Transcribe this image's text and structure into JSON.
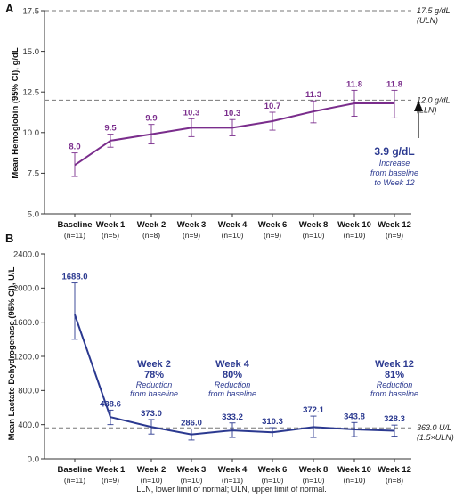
{
  "panel_a": {
    "label": "A",
    "reference_lines": [
      {
        "value": 17.5,
        "text_1": "17.5 g/dL",
        "text_2": "(ULN)"
      },
      {
        "value": 12.0,
        "text_1": "12.0 g/dL",
        "text_2": "(LLN)"
      }
    ],
    "annotation": {
      "value": "3.9 g/dL",
      "line_1": "Increase",
      "line_2": "from baseline",
      "line_3": "to Week 12"
    }
  },
  "panel_b": {
    "label": "B",
    "reference_lines": [
      {
        "value": 363.0,
        "text_1": "363.0 U/L",
        "text_2": "(1.5×ULN)"
      }
    ],
    "annotations": [
      {
        "week": "Week 2",
        "pct": "78%",
        "line_1": "Reduction",
        "line_2": "from baseline"
      },
      {
        "week": "Week 4",
        "pct": "80%",
        "line_1": "Reduction",
        "line_2": "from baseline"
      },
      {
        "week": "Week 12",
        "pct": "81%",
        "line_1": "Reduction",
        "line_2": "from baseline"
      }
    ]
  },
  "footnote": "LLN, lower limit of normal; ULN, upper limit of normal.",
  "colors": {
    "series_a": "#7a2d8c",
    "series_b": "#2b3990",
    "reference": "#777777"
  },
  "chart_data": [
    {
      "type": "line",
      "categories": [
        "Baseline",
        "Week 1",
        "Week 2",
        "Week 3",
        "Week 4",
        "Week 6",
        "Week 8",
        "Week 10",
        "Week 12"
      ],
      "n_labels": [
        "(n=11)",
        "(n=5)",
        "(n=8)",
        "(n=9)",
        "(n=10)",
        "(n=9)",
        "(n=10)",
        "(n=10)",
        "(n=9)"
      ],
      "series": [
        {
          "values": [
            8.0,
            9.5,
            9.9,
            10.3,
            10.3,
            10.7,
            11.3,
            11.8,
            11.8
          ],
          "labels": [
            "8.0",
            "9.5",
            "9.9",
            "10.3",
            "10.3",
            "10.7",
            "11.3",
            "11.8",
            "11.8"
          ],
          "ci_low": [
            7.3,
            9.1,
            9.3,
            9.75,
            9.8,
            10.15,
            10.6,
            11.0,
            10.9
          ],
          "ci_high": [
            8.75,
            9.9,
            10.5,
            10.85,
            10.8,
            11.25,
            11.95,
            12.6,
            12.6
          ]
        }
      ],
      "ylabel": "Mean Hemoglobin (95% CI), g/dL",
      "ylim": [
        5.0,
        17.5
      ],
      "yticks": [
        "5.0",
        "7.5",
        "10.0",
        "12.5",
        "15.0",
        "17.5"
      ]
    },
    {
      "type": "line",
      "categories": [
        "Baseline",
        "Week 1",
        "Week 2",
        "Week 3",
        "Week 4",
        "Week 6",
        "Week 8",
        "Week 10",
        "Week 12"
      ],
      "n_labels": [
        "(n=11)",
        "(n=9)",
        "(n=10)",
        "(n=10)",
        "(n=11)",
        "(n=10)",
        "(n=10)",
        "(n=10)",
        "(n=8)"
      ],
      "series": [
        {
          "values": [
            1688.0,
            488.6,
            373.0,
            286.0,
            333.2,
            310.3,
            372.1,
            343.8,
            328.3
          ],
          "labels": [
            "1688.0",
            "488.6",
            "373.0",
            "286.0",
            "333.2",
            "310.3",
            "372.1",
            "343.8",
            "328.3"
          ],
          "ci_low": [
            1400,
            400,
            290,
            220,
            250,
            255,
            250,
            260,
            265
          ],
          "ci_high": [
            2060,
            570,
            460,
            350,
            420,
            365,
            500,
            425,
            395
          ]
        }
      ],
      "ylabel": "Mean Lactate Dehydrogenase (95% CI), U/L",
      "ylim": [
        0,
        2400
      ],
      "yticks": [
        "0.0",
        "400.0",
        "800.0",
        "1200.0",
        "1600.0",
        "2000.0",
        "2400.0"
      ]
    }
  ]
}
